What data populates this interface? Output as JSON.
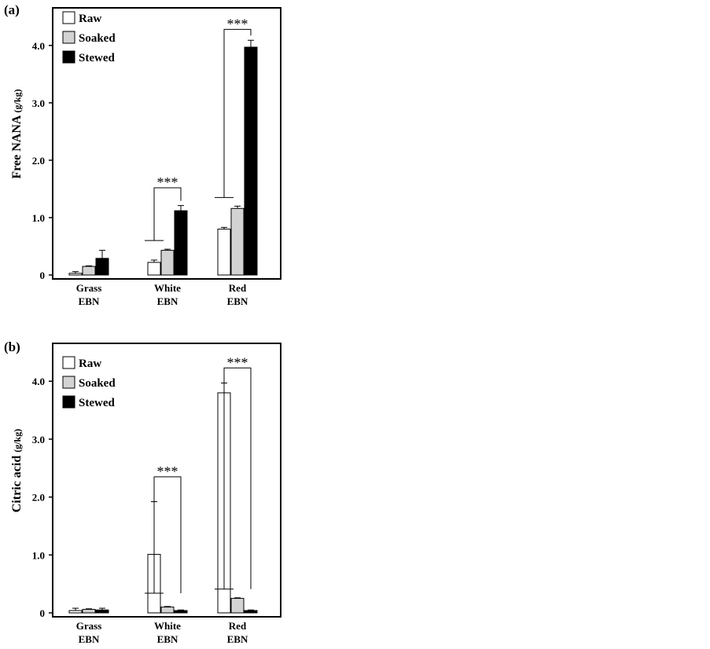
{
  "chart_data": [
    {
      "type": "bar",
      "panel_label": "(a)",
      "ylabel": "Free NANA",
      "ylabel_unit": "(g/kg)",
      "ylim": [
        0,
        4.6
      ],
      "yticks": [
        0,
        1.0,
        2.0,
        3.0,
        4.0
      ],
      "ytick_labels": [
        "0",
        "1.0",
        "2.0",
        "3.0",
        "4.0"
      ],
      "categories": [
        [
          "Grass",
          "EBN"
        ],
        [
          "White",
          "EBN"
        ],
        [
          "Red",
          "EBN"
        ]
      ],
      "legend_placement": "top-left",
      "grid": false,
      "series": [
        {
          "name": "Raw",
          "color": "#ffffff",
          "values": [
            0.03,
            0.22,
            0.8
          ],
          "errors": [
            0.03,
            0.04,
            0.03
          ]
        },
        {
          "name": "Soaked",
          "color": "#d3d3d3",
          "values": [
            0.15,
            0.43,
            1.16
          ],
          "errors": [
            0.01,
            0.02,
            0.04
          ]
        },
        {
          "name": "Stewed",
          "color": "#000000",
          "values": [
            0.29,
            1.12,
            3.97
          ],
          "errors": [
            0.14,
            0.09,
            0.12
          ]
        }
      ],
      "annotations": [
        {
          "text": "***",
          "category": 1,
          "from": "Raw",
          "to": "Stewed",
          "bracket_y": 1.52,
          "low_y": 0.6
        },
        {
          "text": "***",
          "category": 2,
          "from": "Raw",
          "to": "Stewed",
          "bracket_y": 4.28,
          "low_y": 1.35
        }
      ]
    },
    {
      "type": "bar",
      "panel_label": "(b)",
      "ylabel": "Citric acid",
      "ylabel_unit": "(g/kg)",
      "ylim": [
        0,
        4.6
      ],
      "yticks": [
        0,
        1.0,
        2.0,
        3.0,
        4.0
      ],
      "ytick_labels": [
        "0",
        "1.0",
        "2.0",
        "3.0",
        "4.0"
      ],
      "categories": [
        [
          "Grass",
          "EBN"
        ],
        [
          "White",
          "EBN"
        ],
        [
          "Red",
          "EBN"
        ]
      ],
      "legend_placement": "top-left",
      "grid": false,
      "series": [
        {
          "name": "Raw",
          "color": "#ffffff",
          "values": [
            0.04,
            1.01,
            3.8
          ],
          "errors": [
            0.04,
            0.91,
            0.17
          ]
        },
        {
          "name": "Soaked",
          "color": "#d3d3d3",
          "values": [
            0.06,
            0.1,
            0.25
          ],
          "errors": [
            0.01,
            0.01,
            0.01
          ]
        },
        {
          "name": "Stewed",
          "color": "#000000",
          "values": [
            0.05,
            0.04,
            0.04
          ],
          "errors": [
            0.03,
            0.01,
            0.01
          ]
        }
      ],
      "annotations": [
        {
          "text": "***",
          "category": 1,
          "from": "Raw",
          "to": "Stewed",
          "bracket_y": 2.35,
          "low_y": 0.34
        },
        {
          "text": "***",
          "category": 2,
          "from": "Raw",
          "to": "Stewed",
          "bracket_y": 4.23,
          "low_y": 0.41
        }
      ]
    }
  ]
}
